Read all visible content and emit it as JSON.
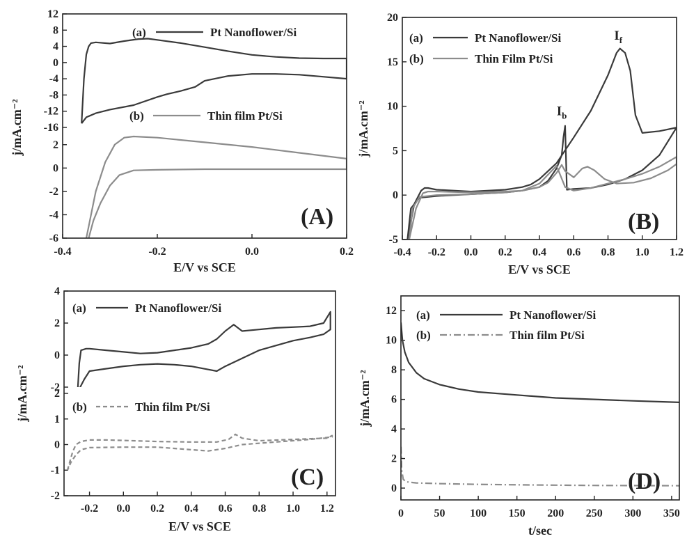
{
  "chart_data": [
    {
      "id": "A",
      "type": "line",
      "panel_label": "(A)",
      "xlabel": "E/V vs SCE",
      "ylabel": "j/mA.cm⁻²",
      "xlim": [
        -0.4,
        0.2
      ],
      "x_ticks": [
        "-0.4",
        "-0.2",
        "0.0",
        "0.2"
      ],
      "subplots": [
        {
          "ylim": [
            -16,
            12
          ],
          "y_ticks": [
            "12",
            "8",
            "4",
            "0",
            "-4",
            "-8",
            "-12",
            "-16"
          ],
          "legend_label": "(a)",
          "series": [
            {
              "name": "Pt Nanoflower/Si",
              "color": "#3a3a3a",
              "dash": "",
              "x": [
                -0.36,
                -0.355,
                -0.35,
                -0.345,
                -0.34,
                -0.33,
                -0.3,
                -0.27,
                -0.24,
                -0.22,
                -0.2,
                -0.15,
                -0.1,
                -0.05,
                0.0,
                0.05,
                0.1,
                0.15,
                0.2,
                0.2,
                0.15,
                0.1,
                0.05,
                0.0,
                -0.05,
                -0.1,
                -0.12,
                -0.15,
                -0.18,
                -0.2,
                -0.25,
                -0.3,
                -0.33,
                -0.35,
                -0.36
              ],
              "y": [
                -15,
                -4,
                2,
                4,
                4.8,
                5,
                4.7,
                5.3,
                5.8,
                5.9,
                5.6,
                4.8,
                3.8,
                2.8,
                1.9,
                1.4,
                1.1,
                1.0,
                1.0,
                -4,
                -3.5,
                -3.0,
                -2.8,
                -2.8,
                -3.3,
                -4.5,
                -6,
                -7,
                -7.8,
                -8.5,
                -10.5,
                -11.6,
                -12.5,
                -13.5,
                -15
              ]
            }
          ]
        },
        {
          "ylim": [
            -6,
            3
          ],
          "y_ticks": [
            "2",
            "0",
            "-2",
            "-4",
            "-6"
          ],
          "legend_label": "(b)",
          "series": [
            {
              "name": "Thin film Pt/Si",
              "color": "#8c8c8c",
              "dash": "",
              "x": [
                -0.35,
                -0.33,
                -0.31,
                -0.29,
                -0.27,
                -0.25,
                -0.2,
                -0.1,
                0.0,
                0.1,
                0.2,
                0.2,
                0.1,
                0.0,
                -0.1,
                -0.2,
                -0.25,
                -0.28,
                -0.3,
                -0.32,
                -0.335,
                -0.345
              ],
              "y": [
                -6,
                -2,
                0.5,
                2.0,
                2.6,
                2.7,
                2.6,
                2.2,
                1.8,
                1.3,
                0.8,
                -0.1,
                -0.1,
                -0.1,
                -0.1,
                -0.15,
                -0.2,
                -0.6,
                -1.5,
                -3.0,
                -4.5,
                -6
              ]
            }
          ]
        }
      ]
    },
    {
      "id": "B",
      "type": "line",
      "panel_label": "(B)",
      "xlabel": "E/V vs SCE",
      "ylabel": "j/mA.cm⁻²",
      "xlim": [
        -0.4,
        1.2
      ],
      "ylim": [
        -5,
        20
      ],
      "x_ticks": [
        "-0.4",
        "-0.2",
        "0.0",
        "0.2",
        "0.4",
        "0.6",
        "0.8",
        "1.0",
        "1.2"
      ],
      "y_ticks": [
        "20",
        "15",
        "10",
        "5",
        "0",
        "-5"
      ],
      "legend_labels": [
        "(a)",
        "(b)"
      ],
      "annotations": [
        {
          "text": "I",
          "sub": "f",
          "x": 0.86,
          "y": 17.5
        },
        {
          "text": "I",
          "sub": "b",
          "x": 0.53,
          "y": 9.0
        }
      ],
      "series": [
        {
          "name": "Pt Nanoflower/Si",
          "color": "#3a3a3a",
          "dash": "",
          "x": [
            -0.37,
            -0.33,
            -0.29,
            -0.27,
            -0.25,
            -0.2,
            0.0,
            0.2,
            0.3,
            0.35,
            0.4,
            0.5,
            0.6,
            0.7,
            0.8,
            0.85,
            0.87,
            0.9,
            0.93,
            0.96,
            1.0,
            1.1,
            1.2,
            1.2,
            1.1,
            1.0,
            0.9,
            0.8,
            0.7,
            0.6,
            0.56,
            0.55,
            0.54,
            0.53,
            0.5,
            0.45,
            0.4,
            0.3,
            0.2,
            0.0,
            -0.2,
            -0.3,
            -0.35,
            -0.37
          ],
          "y": [
            -5,
            -1,
            0.5,
            0.8,
            0.8,
            0.6,
            0.4,
            0.6,
            0.9,
            1.2,
            1.8,
            3.6,
            6.5,
            9.5,
            13.5,
            16.0,
            16.5,
            16.0,
            14.0,
            9.0,
            7.0,
            7.2,
            7.6,
            7.6,
            4.5,
            2.8,
            1.8,
            1.2,
            0.8,
            0.7,
            0.6,
            7.8,
            6.5,
            4.5,
            3.0,
            1.6,
            0.9,
            0.5,
            0.3,
            0.1,
            -0.1,
            -0.3,
            -1.5,
            -5
          ]
        },
        {
          "name": "Thin Film Pt/Si",
          "color": "#8c8c8c",
          "dash": "",
          "x": [
            -0.36,
            -0.32,
            -0.28,
            -0.25,
            -0.2,
            0.0,
            0.2,
            0.3,
            0.4,
            0.45,
            0.5,
            0.53,
            0.55,
            0.6,
            0.65,
            0.68,
            0.72,
            0.78,
            0.85,
            0.95,
            1.05,
            1.15,
            1.2,
            1.2,
            1.1,
            1.0,
            0.9,
            0.8,
            0.7,
            0.6,
            0.55,
            0.5,
            0.45,
            0.4,
            0.3,
            0.2,
            0.0,
            -0.2,
            -0.3,
            -0.34,
            -0.36
          ],
          "y": [
            -5,
            -1.5,
            0.2,
            0.4,
            0.4,
            0.3,
            0.4,
            0.5,
            0.9,
            1.4,
            2.5,
            3.4,
            2.7,
            2.0,
            3.0,
            3.2,
            2.8,
            1.8,
            1.3,
            1.4,
            1.9,
            2.8,
            3.5,
            4.3,
            3.2,
            2.4,
            1.8,
            1.3,
            0.8,
            0.5,
            0.9,
            3.3,
            2.3,
            1.3,
            0.5,
            0.3,
            0.1,
            0.0,
            -0.2,
            -1.5,
            -5
          ]
        }
      ]
    },
    {
      "id": "C",
      "type": "line",
      "panel_label": "(C)",
      "xlabel": "E/V vs SCE",
      "ylabel": "j/mA.cm⁻²",
      "xlim": [
        -0.35,
        1.25
      ],
      "x_ticks": [
        "-0.2",
        "0.0",
        "0.2",
        "0.4",
        "0.6",
        "0.8",
        "1.0",
        "1.2"
      ],
      "subplots": [
        {
          "ylim": [
            -2,
            4
          ],
          "y_ticks": [
            "4",
            "2",
            "0",
            "-2"
          ],
          "legend_label": "(a)",
          "series": [
            {
              "name": "Pt Nanoflower/Si",
              "color": "#3a3a3a",
              "dash": "",
              "x": [
                -0.27,
                -0.26,
                -0.25,
                -0.22,
                -0.2,
                -0.1,
                0.0,
                0.1,
                0.2,
                0.3,
                0.4,
                0.5,
                0.55,
                0.6,
                0.65,
                0.7,
                0.8,
                0.9,
                1.0,
                1.1,
                1.18,
                1.22,
                1.22,
                1.18,
                1.1,
                1.0,
                0.9,
                0.8,
                0.7,
                0.6,
                0.55,
                0.5,
                0.4,
                0.3,
                0.2,
                0.1,
                0.0,
                -0.1,
                -0.2,
                -0.23,
                -0.25,
                -0.27
              ],
              "y": [
                -2.3,
                -0.5,
                0.3,
                0.4,
                0.4,
                0.3,
                0.2,
                0.1,
                0.15,
                0.3,
                0.45,
                0.7,
                1.0,
                1.5,
                1.9,
                1.5,
                1.6,
                1.7,
                1.75,
                1.8,
                2.0,
                2.7,
                1.6,
                1.3,
                1.1,
                0.9,
                0.6,
                0.3,
                -0.2,
                -0.7,
                -1.0,
                -0.9,
                -0.7,
                -0.6,
                -0.55,
                -0.6,
                -0.7,
                -0.85,
                -1.0,
                -1.5,
                -1.9,
                -2.3
              ]
            }
          ]
        },
        {
          "ylim": [
            -2,
            2
          ],
          "y_ticks": [
            "2",
            "1",
            "0",
            "-1",
            "-2"
          ],
          "legend_label": "(b)",
          "series": [
            {
              "name": "Thin film Pt/Si",
              "color": "#8c8c8c",
              "dash": "6,4",
              "x": [
                -0.33,
                -0.3,
                -0.28,
                -0.25,
                -0.2,
                -0.1,
                0.0,
                0.2,
                0.4,
                0.55,
                0.62,
                0.66,
                0.7,
                0.8,
                1.0,
                1.2,
                1.23,
                1.23,
                1.1,
                0.9,
                0.7,
                0.6,
                0.5,
                0.4,
                0.2,
                0.0,
                -0.2,
                -0.25,
                -0.28,
                -0.31,
                -0.33
              ],
              "y": [
                -1.0,
                -0.3,
                0.0,
                0.12,
                0.18,
                0.18,
                0.16,
                0.12,
                0.1,
                0.1,
                0.2,
                0.4,
                0.25,
                0.15,
                0.2,
                0.25,
                0.35,
                0.3,
                0.2,
                0.1,
                0.0,
                -0.15,
                -0.25,
                -0.2,
                -0.1,
                -0.1,
                -0.12,
                -0.2,
                -0.4,
                -0.7,
                -1.0
              ]
            }
          ]
        }
      ]
    },
    {
      "id": "D",
      "type": "line",
      "panel_label": "(D)",
      "xlabel": "t/sec",
      "ylabel": "j/mA.cm⁻²",
      "xlim": [
        0,
        360
      ],
      "ylim": [
        -0.8,
        13
      ],
      "x_ticks": [
        "0",
        "50",
        "100",
        "150",
        "200",
        "250",
        "300",
        "350"
      ],
      "y_ticks": [
        "12",
        "10",
        "8",
        "6",
        "4",
        "2",
        "0"
      ],
      "legend_labels": [
        "(a)",
        "(b)"
      ],
      "series": [
        {
          "name": "Pt Nanoflower/Si",
          "color": "#3a3a3a",
          "dash": "",
          "x": [
            0,
            2,
            5,
            10,
            20,
            30,
            50,
            75,
            100,
            150,
            200,
            250,
            300,
            360
          ],
          "y": [
            11.2,
            10.0,
            9.2,
            8.5,
            7.8,
            7.4,
            7.0,
            6.7,
            6.5,
            6.3,
            6.1,
            6.0,
            5.9,
            5.8
          ]
        },
        {
          "name": "Thin film Pt/Si",
          "color": "#8c8c8c",
          "dash": "10,4,2,4",
          "x": [
            0,
            1,
            3,
            6,
            10,
            20,
            50,
            100,
            150,
            200,
            250,
            300,
            360
          ],
          "y": [
            2.8,
            1.2,
            0.6,
            0.45,
            0.4,
            0.35,
            0.3,
            0.25,
            0.22,
            0.2,
            0.18,
            0.17,
            0.16
          ]
        }
      ]
    }
  ]
}
